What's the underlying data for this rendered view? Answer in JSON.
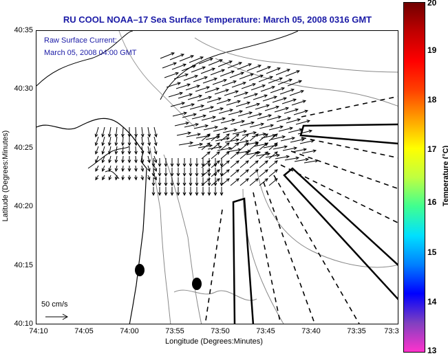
{
  "title": "RU COOL  NOAA–17  Sea Surface Temperature:  March 05, 2008 0316 GMT",
  "legend": {
    "line1": "Raw Surface Current:",
    "line2": "March 05, 2008 04:00 GMT",
    "scale_label": "50 cm/s"
  },
  "axes": {
    "xlabel": "Longitude (Degrees:Minutes)",
    "ylabel": "Latitude (Degrees:Minutes)",
    "xticks": [
      "74:10",
      "74:05",
      "74:00",
      "73:55",
      "73:50",
      "73:45",
      "73:40",
      "73:35",
      "73:3"
    ],
    "yticks": [
      "40:35",
      "40:30",
      "40:25",
      "40:20",
      "40:15",
      "40:10"
    ]
  },
  "colorbar": {
    "label": "Temperature (°C)",
    "ticks": [
      "20",
      "19",
      "18",
      "17",
      "16",
      "15",
      "14",
      "13"
    ],
    "min": 13,
    "max": 20,
    "colors": [
      "#ff33cc",
      "#8040c0",
      "#0000ff",
      "#0080ff",
      "#00e0ff",
      "#40ff90",
      "#c0ff40",
      "#ffff00",
      "#ffa000",
      "#ff4000",
      "#ff0000",
      "#c00000",
      "#700000"
    ]
  },
  "chart_data": {
    "type": "map",
    "title": "RU COOL  NOAA–17  Sea Surface Temperature:  March 05, 2008 0316 GMT",
    "xlabel": "Longitude (Degrees:Minutes)",
    "ylabel": "Latitude (Degrees:Minutes)",
    "xlim": [
      "74:10",
      "73:30"
    ],
    "ylim": [
      "40:10",
      "40:35"
    ],
    "colorbar_range": [
      13,
      20
    ],
    "markers": [
      {
        "type": "filled-ellipse",
        "lon": "73:59",
        "lat": "40:15"
      },
      {
        "type": "filled-ellipse",
        "lon": "73:52",
        "lat": "40:13.5"
      }
    ]
  }
}
